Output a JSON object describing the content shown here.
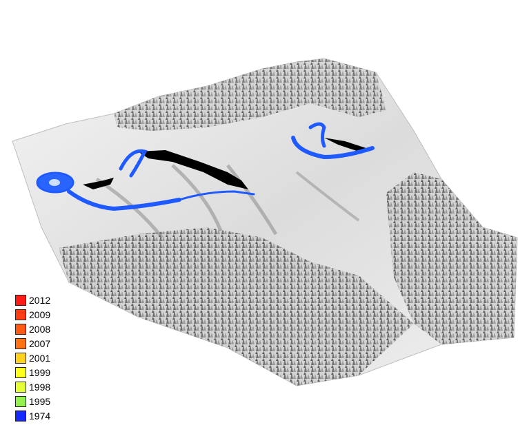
{
  "legend": {
    "items": [
      {
        "label": "2012",
        "color": "#ff1a1a"
      },
      {
        "label": "2009",
        "color": "#ff3c14"
      },
      {
        "label": "2008",
        "color": "#ff5a14"
      },
      {
        "label": "2007",
        "color": "#ff7314"
      },
      {
        "label": "2001",
        "color": "#ffd21e"
      },
      {
        "label": "1999",
        "color": "#ffff1e"
      },
      {
        "label": "1998",
        "color": "#e6ff32"
      },
      {
        "label": "1995",
        "color": "#96f050"
      },
      {
        "label": "1974",
        "color": "#1428ff"
      }
    ]
  },
  "map": {
    "surface_color": "#e2e2e2",
    "outline_color": "#1e5aff",
    "outline_1974_color": "#1e5aff",
    "crevasse_color": "#000000"
  }
}
